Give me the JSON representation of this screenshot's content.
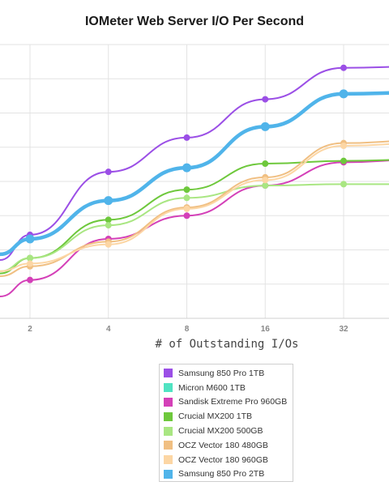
{
  "chart_data": {
    "type": "line",
    "title": "IOMeter Web Server I/O Per Second",
    "xlabel": "# of Outstanding I/Os",
    "ylabel": "",
    "x_scale": "log2",
    "categories": [
      "2",
      "4",
      "8",
      "16",
      "32"
    ],
    "x": [
      1,
      2,
      4,
      8,
      16,
      32,
      64
    ],
    "ylim": [
      0,
      100
    ],
    "grid": true,
    "legend_position": "bottom-center",
    "series": [
      {
        "name": "Samsung 850 Pro 1TB",
        "color": "#9b4fe6",
        "values": [
          null,
          30.5,
          53.5,
          66,
          80,
          91.5,
          92
        ]
      },
      {
        "name": "Micron M600 1TB",
        "color": "#50e3c2",
        "values": [
          null,
          null,
          null,
          null,
          null,
          null,
          null
        ]
      },
      {
        "name": "Sandisk Extreme Pro 960GB",
        "color": "#d440b8",
        "values": [
          null,
          14,
          29,
          37.5,
          48.5,
          57,
          58
        ]
      },
      {
        "name": "Crucial MX200 1TB",
        "color": "#6ec83c",
        "values": [
          null,
          22,
          36,
          47,
          56.5,
          57.5,
          58
        ]
      },
      {
        "name": "Crucial MX200 500GB",
        "color": "#a9e682",
        "values": [
          null,
          22,
          34,
          44,
          48.5,
          49,
          49
        ]
      },
      {
        "name": "OCZ Vector 180 480GB",
        "color": "#f0bf82",
        "values": [
          null,
          19,
          28,
          40.5,
          51.5,
          64,
          65
        ]
      },
      {
        "name": "OCZ Vector 180 960GB",
        "color": "#fcd6a4",
        "values": [
          null,
          20,
          27,
          40,
          50.5,
          63,
          64
        ]
      },
      {
        "name": "Samsung 850 Pro 2TB",
        "color": "#50b4ea",
        "values": [
          null,
          29,
          43,
          55,
          70,
          82,
          82.5
        ]
      }
    ]
  }
}
